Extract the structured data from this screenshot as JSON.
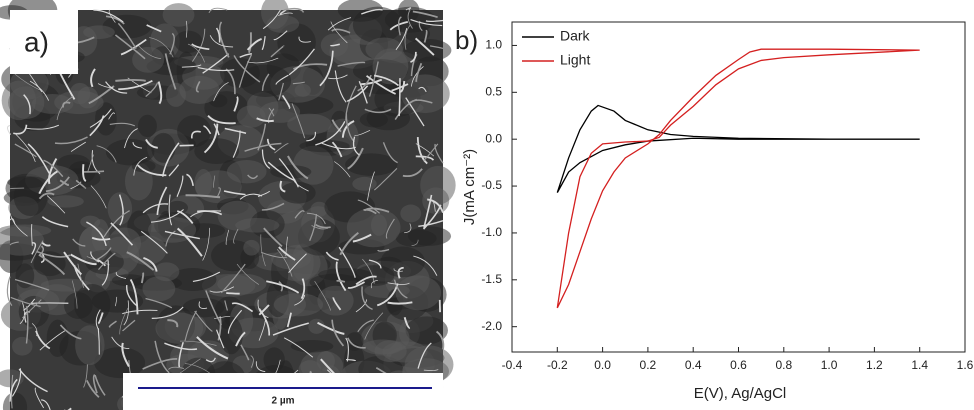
{
  "panels": {
    "a": {
      "label": "a)",
      "scale_bar": "2 µm"
    },
    "b": {
      "label": "b)"
    }
  },
  "chart_data": {
    "type": "line",
    "xlabel": "E(V), Ag/AgCl",
    "ylabel": "J(mA cm⁻²)",
    "xlim": [
      -0.4,
      1.6
    ],
    "ylim": [
      -2.27,
      1.25
    ],
    "xticks": [
      -0.4,
      -0.2,
      {
        "value": 0,
        "label": "0.0"
      },
      0.2,
      0.4,
      0.6,
      0.8,
      {
        "value": 1,
        "label": "1.0"
      },
      1.2,
      1.4,
      1.6
    ],
    "yticks": [
      {
        "value": -2,
        "label": "-2.0"
      },
      -1.5,
      {
        "value": -1,
        "label": "-1.0"
      },
      -0.5,
      {
        "value": 0,
        "label": "0.0"
      },
      0.5,
      {
        "value": 1,
        "label": "1.0"
      }
    ],
    "legend": "top-left",
    "grid": false,
    "series": [
      {
        "name": "Dark",
        "color": "#000000",
        "x": [
          -0.2,
          -0.15,
          -0.1,
          -0.05,
          -0.02,
          0.05,
          0.1,
          0.2,
          0.3,
          0.4,
          0.6,
          1.0,
          1.4,
          1.0,
          0.6,
          0.4,
          0.2,
          0.1,
          0,
          -0.1,
          -0.15,
          -0.2
        ],
        "values": [
          -0.57,
          -0.2,
          0.1,
          0.3,
          0.36,
          0.3,
          0.2,
          0.1,
          0.05,
          0.03,
          0.01,
          0,
          0,
          0,
          0,
          0.01,
          -0.02,
          -0.06,
          -0.12,
          -0.25,
          -0.35,
          -0.57
        ]
      },
      {
        "name": "Light",
        "color": "#d42020",
        "x": [
          -0.2,
          -0.15,
          -0.1,
          -0.05,
          0,
          0.05,
          0.1,
          0.2,
          0.25,
          0.3,
          0.4,
          0.5,
          0.6,
          0.65,
          0.7,
          1.0,
          1.4,
          1.0,
          0.8,
          0.7,
          0.6,
          0.5,
          0.4,
          0.3,
          0.25,
          0.2,
          0.1,
          0,
          -0.05,
          -0.1,
          -0.15,
          -0.2
        ],
        "values": [
          -1.8,
          -1.55,
          -1.2,
          -0.85,
          -0.55,
          -0.35,
          -0.2,
          -0.05,
          0.05,
          0.2,
          0.45,
          0.68,
          0.85,
          0.93,
          0.96,
          0.96,
          0.95,
          0.9,
          0.87,
          0.84,
          0.75,
          0.58,
          0.35,
          0.15,
          0.02,
          -0.02,
          -0.03,
          -0.05,
          -0.15,
          -0.4,
          -1.0,
          -1.8
        ]
      }
    ]
  }
}
